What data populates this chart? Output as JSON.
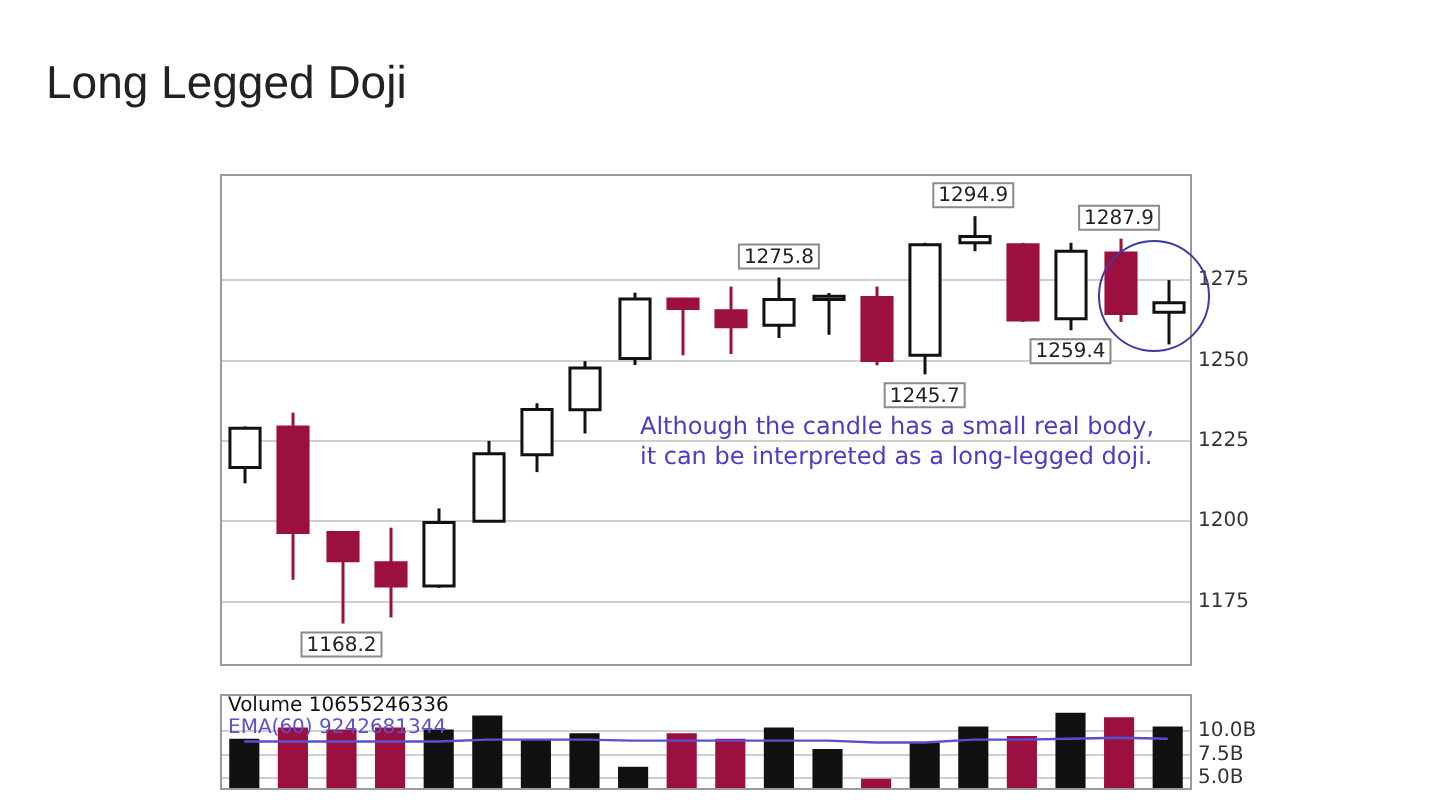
{
  "chart_data": [
    {
      "type": "candlestick",
      "title": "Long Legged Doji",
      "categories": [
        null,
        null,
        null,
        null,
        null,
        null,
        null,
        null,
        null,
        null,
        null,
        null,
        null,
        null,
        null,
        null,
        null,
        null,
        null,
        null
      ],
      "ohlc": [
        [
          1216.7,
          1229.5,
          1211.8,
          1228.9
        ],
        [
          1229.3,
          1233.8,
          1181.8,
          1196.5
        ],
        [
          1196.5,
          1196.5,
          1168.2,
          1187.7
        ],
        [
          1187.1,
          1198,
          1170.1,
          1179.9
        ],
        [
          1179.9,
          1204,
          1179.3,
          1199.6
        ],
        [
          1200,
          1225,
          1200,
          1221
        ],
        [
          1220.7,
          1236.7,
          1215.3,
          1234.8
        ],
        [
          1234.7,
          1249.8,
          1227.3,
          1247.7
        ],
        [
          1250.6,
          1271.1,
          1248.6,
          1269.1
        ],
        [
          1269.1,
          1269.5,
          1251.6,
          1266.2
        ],
        [
          1265.5,
          1273,
          1252,
          1260.5
        ],
        [
          1261,
          1275.8,
          1257,
          1269
        ],
        [
          1269,
          1271,
          1258,
          1270
        ],
        [
          1269.6,
          1273,
          1248.5,
          1250
        ],
        [
          1251.6,
          1286.6,
          1245.7,
          1286
        ],
        [
          1286.6,
          1294.9,
          1284,
          1288.6
        ],
        [
          1286,
          1286.6,
          1262,
          1262.6
        ],
        [
          1263,
          1286.6,
          1259.4,
          1284
        ],
        [
          1283.4,
          1287.9,
          1262,
          1264.6
        ],
        [
          1265,
          1275,
          1255,
          1268
        ]
      ],
      "colors": [
        "#ffffff",
        "#9b1040",
        "#9b1040",
        "#9b1040",
        "#ffffff",
        "#ffffff",
        "#ffffff",
        "#ffffff",
        "#ffffff",
        "#9b1040",
        "#9b1040",
        "#ffffff",
        "#ffffff",
        "#9b1040",
        "#ffffff",
        "#ffffff",
        "#9b1040",
        "#ffffff",
        "#9b1040",
        "#ffffff"
      ],
      "ylim": [
        1155,
        1308
      ],
      "yticks": [
        1175,
        1200,
        1225,
        1250,
        1275
      ],
      "grid": "y",
      "tick_labels": "y",
      "annotations": [
        "Although the candle has a small real body, it can be interpreted as a long-legged doji.",
        {
          "text": "1168.2",
          "y": 1168.2
        },
        {
          "text": "1275.8",
          "y": 1275.8
        },
        {
          "text": "1245.7",
          "y": 1245.7
        },
        {
          "text": "1294.9",
          "y": 1294.9
        },
        {
          "text": "1259.4",
          "y": 1259.4
        },
        {
          "text": "1287.9",
          "y": 1287.9
        }
      ]
    },
    {
      "type": "bar",
      "categories": [
        null,
        null,
        null,
        null,
        null,
        null,
        null,
        null,
        null,
        null,
        null,
        null,
        null,
        null,
        null,
        null,
        null,
        null,
        null,
        null
      ],
      "series": [
        {
          "name": "Volume 10655246336",
          "colors": [
            "#111111",
            "#9b1040",
            "#9b1040",
            "#9b1040",
            "#111111",
            "#111111",
            "#111111",
            "#111111",
            "#111111",
            "#9b1040",
            "#9b1040",
            "#111111",
            "#111111",
            "#9b1040",
            "#111111",
            "#111111",
            "#9b1040",
            "#111111",
            "#9b1040",
            "#111111"
          ],
          "values": [
            9.2,
            10.4,
            10.2,
            10.4,
            10.2,
            11.7,
            9.1,
            9.8,
            6.2,
            9.8,
            9.2,
            10.4,
            8.1,
            4.9,
            8.8,
            10.5,
            9.5,
            12.0,
            11.5,
            10.5
          ]
        },
        {
          "name": "EMA(60) 9242681344",
          "type": "line",
          "color": "#5a4fcf",
          "values": [
            8.9,
            8.9,
            8.9,
            8.9,
            8.9,
            9.1,
            9.1,
            9.1,
            9.0,
            9.0,
            9.0,
            9.0,
            9.0,
            8.8,
            8.8,
            9.1,
            9.1,
            9.2,
            9.3,
            9.2
          ]
        }
      ],
      "ylim": [
        3.7,
        14
      ],
      "yticks": [
        {
          "value": 5,
          "label": "5.0B"
        },
        {
          "value": 7.5,
          "label": "7.5B"
        },
        {
          "value": 10,
          "label": "10.0B"
        }
      ],
      "grid": "y",
      "tick_labels": "y"
    }
  ]
}
